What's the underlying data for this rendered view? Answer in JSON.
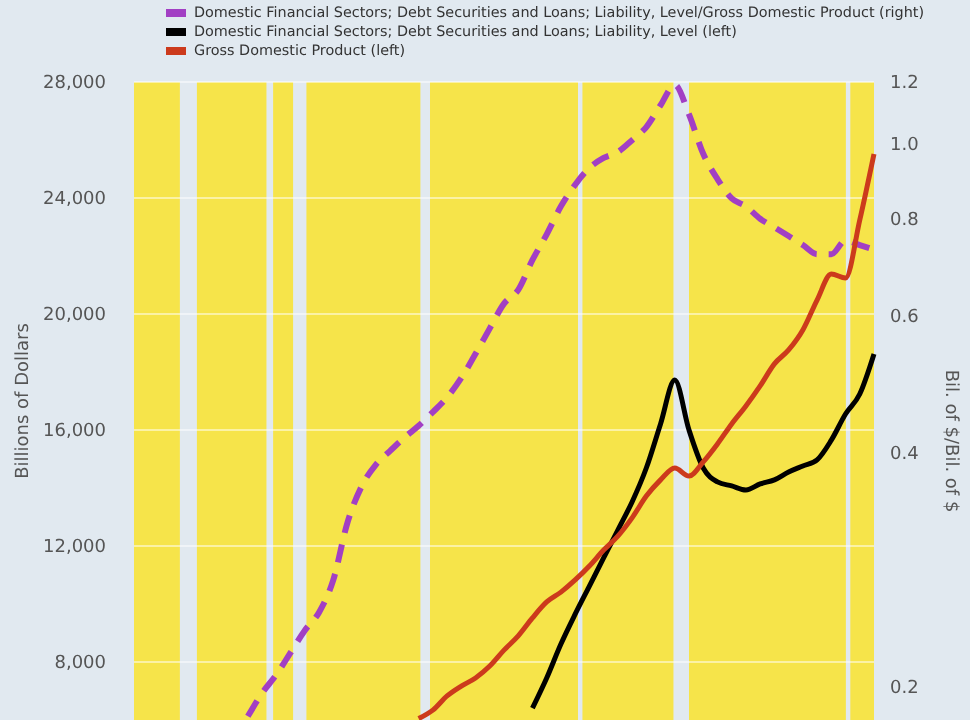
{
  "chart_data": {
    "type": "line",
    "ylabel": "Billions of Dollars",
    "y2label": "Bil. of $/Bil. of $",
    "categories": [
      null,
      null,
      null,
      null,
      null,
      null,
      null,
      null,
      null,
      null,
      null,
      null,
      null,
      null,
      null,
      null,
      null,
      null,
      null,
      null,
      null,
      null,
      null,
      null,
      null,
      null,
      null,
      null,
      null,
      null,
      null,
      null,
      null,
      null,
      null,
      null,
      null,
      null,
      null,
      null,
      null,
      null,
      null,
      null,
      null,
      null,
      null,
      null,
      null,
      null,
      null,
      null,
      null
    ],
    "series": [
      {
        "name": "Domestic Financial Sectors; Debt Securities and Loans; Liability, Level/Gross Domestic Product (right)",
        "color": "#a23fc4",
        "axis": "y2",
        "line_style": "dashed",
        "values": [
          null,
          null,
          null,
          null,
          null,
          null,
          null,
          null,
          0.183,
          0.196,
          0.207,
          0.221,
          0.236,
          0.249,
          0.274,
          0.325,
          0.362,
          0.386,
          0.402,
          0.418,
          0.433,
          0.451,
          0.471,
          0.499,
          0.536,
          0.578,
          0.622,
          0.648,
          0.708,
          0.764,
          0.83,
          0.885,
          0.93,
          0.958,
          0.975,
          1.01,
          1.05,
          1.12,
          1.19,
          1.09,
          0.97,
          0.9,
          0.85,
          0.83,
          0.8,
          0.78,
          0.76,
          0.74,
          0.72,
          0.72,
          0.75,
          0.74,
          0.73
        ]
      },
      {
        "name": "Domestic Financial Sectors; Debt Securities and Loans; Liability, Level (left)",
        "color": "#000000",
        "line_style": "solid",
        "values": [
          null,
          null,
          null,
          null,
          null,
          null,
          null,
          null,
          null,
          null,
          null,
          null,
          null,
          null,
          null,
          null,
          null,
          null,
          null,
          null,
          null,
          null,
          null,
          null,
          null,
          null,
          null,
          null,
          6410,
          7450,
          8620,
          9650,
          10620,
          11590,
          12550,
          13520,
          14690,
          16210,
          17720,
          16000,
          14690,
          14210,
          14070,
          13930,
          14140,
          14280,
          14550,
          14760,
          14970,
          15650,
          16550,
          17240,
          18620
        ]
      },
      {
        "name": "Gross Domestic Product (left)",
        "color": "#cc3a1c",
        "line_style": "solid",
        "values": [
          null,
          null,
          null,
          null,
          null,
          null,
          null,
          null,
          null,
          null,
          null,
          null,
          null,
          null,
          null,
          null,
          null,
          null,
          null,
          null,
          6050,
          6340,
          6830,
          7170,
          7450,
          7860,
          8410,
          8900,
          9520,
          10070,
          10410,
          10830,
          11310,
          11860,
          12340,
          12970,
          13720,
          14280,
          14690,
          14410,
          14900,
          15520,
          16210,
          16830,
          17520,
          18280,
          18760,
          19450,
          20480,
          21380,
          21240,
          23240,
          25520
        ]
      }
    ],
    "ylim": [
      6000,
      28000
    ],
    "yticks": [
      {
        "value": 8000,
        "label": "8,000"
      },
      {
        "value": 12000,
        "label": "12,000"
      },
      {
        "value": 16000,
        "label": "16,000"
      },
      {
        "value": 20000,
        "label": "20,000"
      },
      {
        "value": 24000,
        "label": "24,000"
      },
      {
        "value": 28000,
        "label": "28,000"
      }
    ],
    "y2lim": [
      0.181,
      1.2
    ],
    "y2ticks": [
      0.2,
      0.4,
      0.6,
      0.8,
      {
        "value": 1,
        "label": "1.0"
      },
      1.2
    ],
    "log": "y2",
    "grid": "y",
    "legend": "top",
    "tick_labels": "y"
  }
}
